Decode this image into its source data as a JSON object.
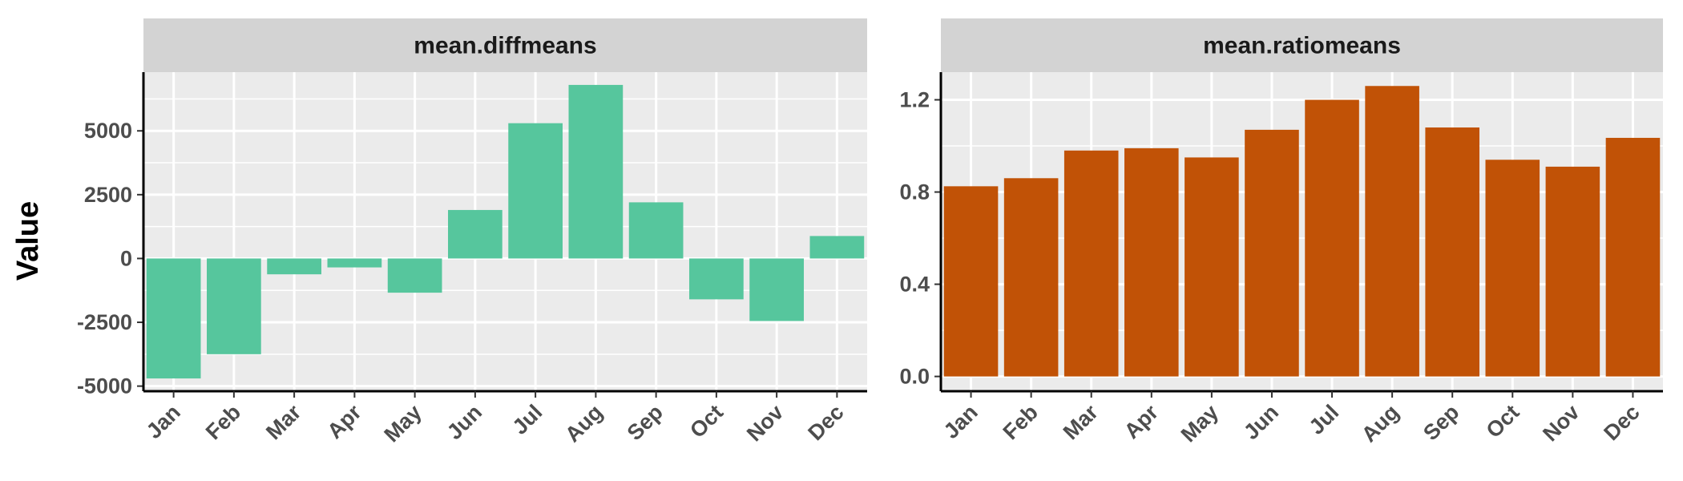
{
  "ylabel": "Value",
  "colors": {
    "diff": "#56c69d",
    "ratio": "#c15206",
    "panel_bg": "#ebebeb",
    "strip_bg": "#d3d3d3",
    "grid": "#ffffff"
  },
  "chart_data": [
    {
      "type": "bar",
      "title": "mean.diffmeans",
      "categories": [
        "Jan",
        "Feb",
        "Mar",
        "Apr",
        "May",
        "Jun",
        "Jul",
        "Aug",
        "Sep",
        "Oct",
        "Nov",
        "Dec"
      ],
      "values": [
        -4700,
        -3750,
        -620,
        -350,
        -1340,
        1900,
        5300,
        6800,
        2200,
        -1600,
        -2450,
        880
      ],
      "yticks": [
        -5000,
        -2500,
        0,
        2500,
        5000
      ],
      "ytick_labels": [
        "-5000",
        "-2500",
        "0",
        "2500",
        "5000"
      ],
      "ylim": [
        -5200,
        7300
      ],
      "ylabel": "Value",
      "grid": true
    },
    {
      "type": "bar",
      "title": "mean.ratiomeans",
      "categories": [
        "Jan",
        "Feb",
        "Mar",
        "Apr",
        "May",
        "Jun",
        "Jul",
        "Aug",
        "Sep",
        "Oct",
        "Nov",
        "Dec"
      ],
      "values": [
        0.825,
        0.86,
        0.98,
        0.99,
        0.95,
        1.07,
        1.2,
        1.26,
        1.08,
        0.94,
        0.91,
        1.035
      ],
      "yticks": [
        0.0,
        0.4,
        0.8,
        1.2
      ],
      "ytick_labels": [
        "0.0",
        "0.4",
        "0.8",
        "1.2"
      ],
      "ylim": [
        -0.064,
        1.32
      ],
      "grid": true
    }
  ]
}
